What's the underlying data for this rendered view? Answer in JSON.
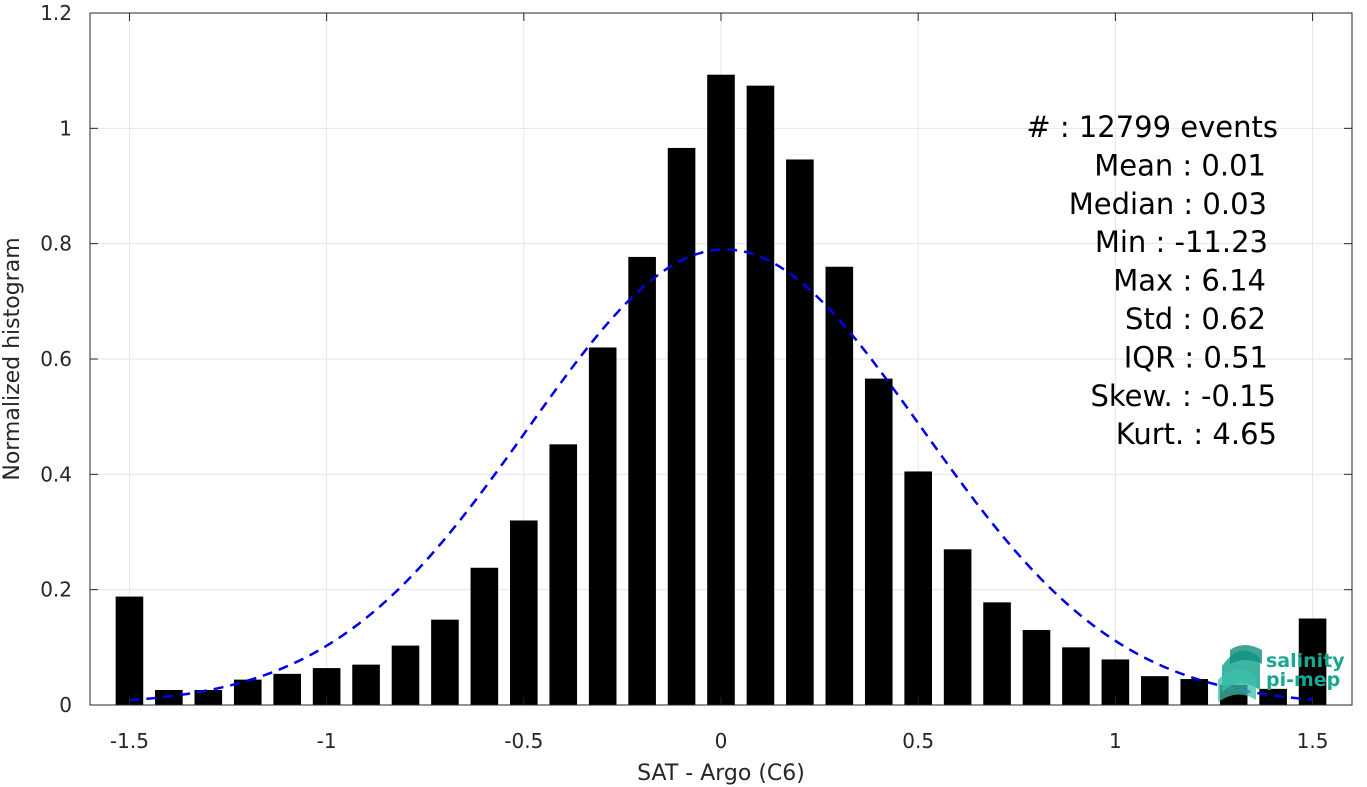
{
  "chart_data": {
    "type": "bar",
    "xlabel": "SAT - Argo (C6)",
    "ylabel": "Normalized histogram",
    "xlim": [
      -1.6,
      1.6
    ],
    "ylim": [
      0,
      1.2
    ],
    "xticks": [
      -1.5,
      -1,
      -0.5,
      0,
      0.5,
      1,
      1.5
    ],
    "xtick_labels": [
      "-1.5",
      "-1",
      "-0.5",
      "0",
      "0.5",
      "1",
      "1.5"
    ],
    "yticks": [
      0,
      0.2,
      0.4,
      0.6,
      0.8,
      1,
      1.2
    ],
    "ytick_labels": [
      "0",
      "0.2",
      "0.4",
      "0.6",
      "0.8",
      "1",
      "1.2"
    ],
    "grid": true,
    "bar_color": "#000000",
    "bar_width": 0.07,
    "x": [
      -1.5,
      -1.4,
      -1.3,
      -1.2,
      -1.1,
      -1.0,
      -0.9,
      -0.8,
      -0.7,
      -0.6,
      -0.5,
      -0.4,
      -0.3,
      -0.2,
      -0.1,
      0.0,
      0.1,
      0.2,
      0.3,
      0.4,
      0.5,
      0.6,
      0.7,
      0.8,
      0.9,
      1.0,
      1.1,
      1.2,
      1.3,
      1.4,
      1.5
    ],
    "values": [
      0.188,
      0.026,
      0.026,
      0.044,
      0.054,
      0.064,
      0.07,
      0.103,
      0.148,
      0.238,
      0.32,
      0.452,
      0.62,
      0.777,
      0.966,
      1.093,
      1.074,
      0.946,
      0.76,
      0.566,
      0.405,
      0.27,
      0.178,
      0.13,
      0.1,
      0.079,
      0.05,
      0.045,
      0.035,
      0.028,
      0.15
    ],
    "fit": {
      "type": "normal",
      "mean": 0.01,
      "std": 0.5,
      "peak": 0.79,
      "color": "#0000e6",
      "style": "dashed"
    },
    "stats_lines": [
      "#  : 12799 events",
      "Mean : 0.01",
      "Median : 0.03",
      "Min : -11.23",
      "Max : 6.14",
      "Std : 0.62",
      "IQR : 0.51",
      "Skew. : -0.15",
      "Kurt. : 4.65"
    ],
    "logo": {
      "line1": "salinity",
      "line2": "pi-mep",
      "color": "#1aa792"
    }
  }
}
